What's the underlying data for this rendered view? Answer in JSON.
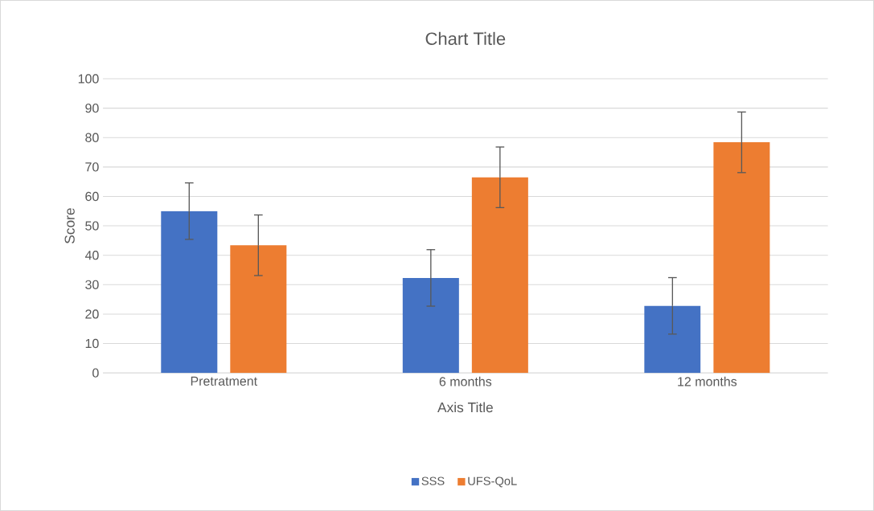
{
  "chart_data": {
    "type": "bar",
    "title": "Chart Title",
    "xlabel": "Axis Title",
    "ylabel": "Score",
    "categories": [
      "Pretratment",
      "6 months",
      "12 months"
    ],
    "series": [
      {
        "name": "SSS",
        "color": "#4472c4",
        "values": [
          55.0,
          32.3,
          22.8
        ],
        "errors": [
          9.6,
          9.6,
          9.6
        ]
      },
      {
        "name": "UFS-QoL",
        "color": "#ed7d31",
        "values": [
          43.4,
          66.5,
          78.4
        ],
        "errors": [
          10.3,
          10.3,
          10.3
        ]
      }
    ],
    "ylim": [
      0,
      100
    ],
    "yticks": [
      0,
      10,
      20,
      30,
      40,
      50,
      60,
      70,
      80,
      90,
      100
    ],
    "grid": "y",
    "legend": "bottom"
  }
}
